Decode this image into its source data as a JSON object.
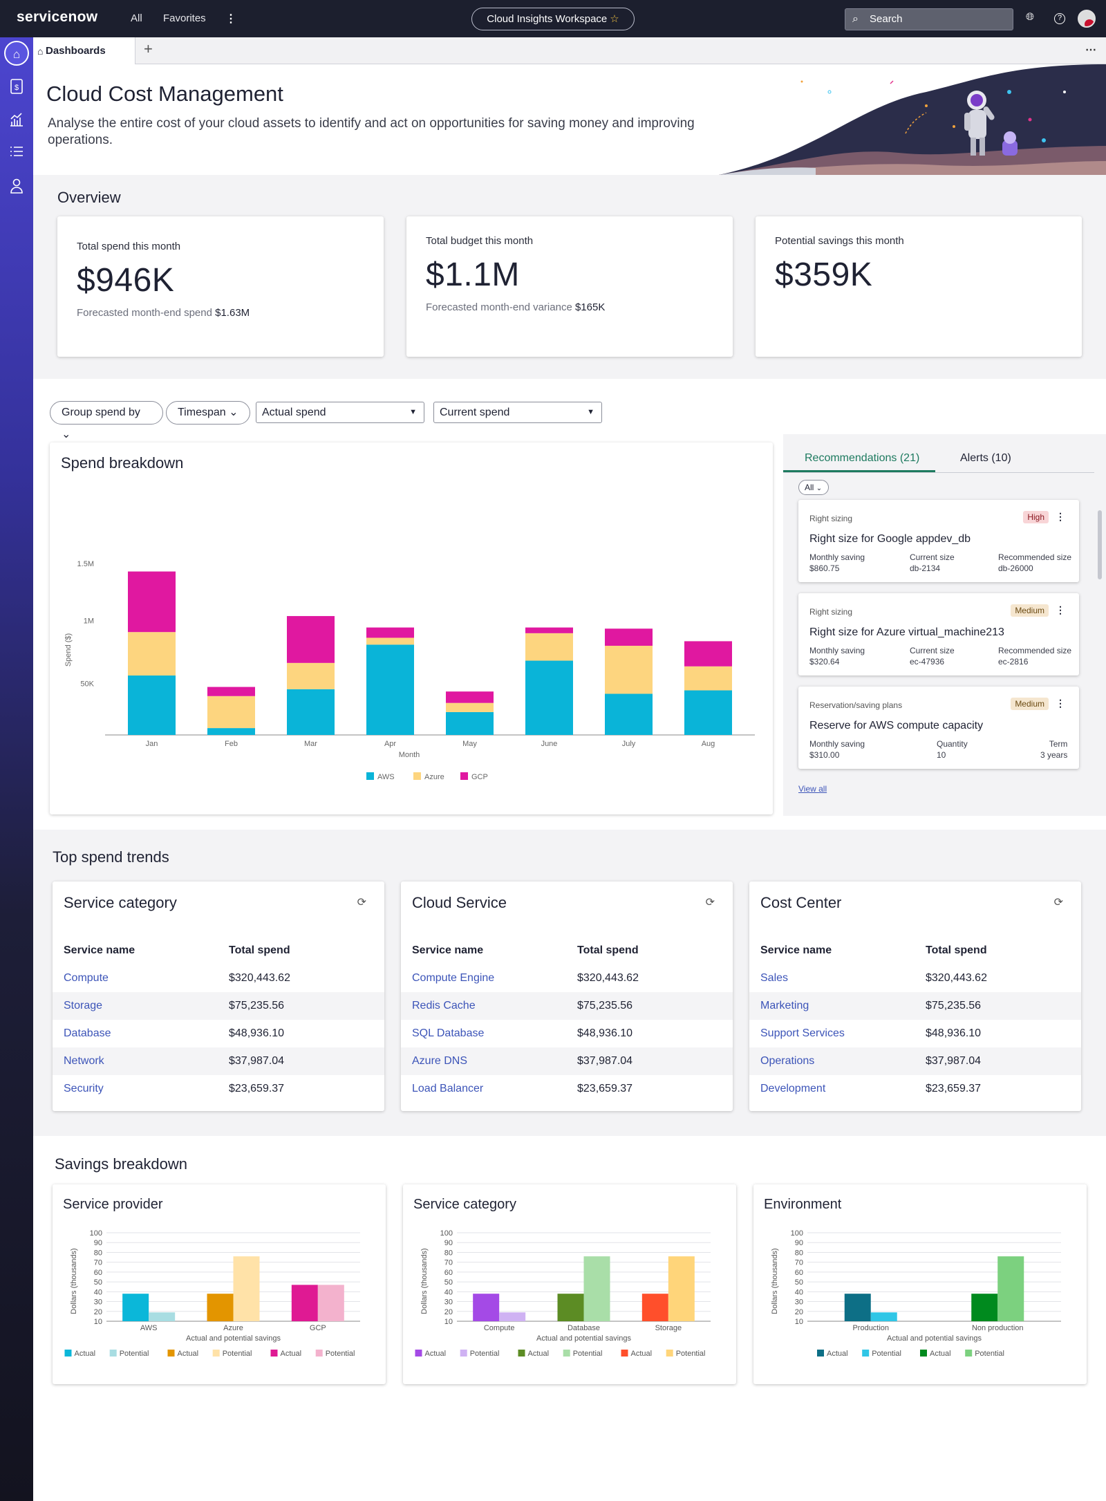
{
  "topbar": {
    "logo": "servicenow",
    "all": "All",
    "favorites": "Favorites",
    "workspace": "Cloud Insights Workspace",
    "search_placeholder": "Search"
  },
  "tabs": {
    "active": "Dashboards"
  },
  "hero": {
    "title": "Cloud Cost Management",
    "description": "Analyse the entire cost of your cloud assets to identify and act on opportunities for saving money and improving operations."
  },
  "overview": {
    "title": "Overview",
    "cards": [
      {
        "label": "Total spend this month",
        "value": "$946K",
        "sub_label": "Forecasted month-end spend",
        "sub_value": "$1.63M"
      },
      {
        "label": "Total budget this month",
        "value": "$1.1M",
        "sub_label": "Forecasted month-end variance",
        "sub_value": "$165K"
      },
      {
        "label": "Potential savings this month",
        "value": "$359K"
      }
    ]
  },
  "filters": {
    "group_by": "Group spend by",
    "timespan": "Timespan",
    "select1": "Actual spend",
    "select2": "Current spend"
  },
  "chart_data": [
    {
      "type": "bar",
      "stacked": true,
      "title": "Spend breakdown",
      "xlabel": "Month",
      "ylabel": "Spend ($)",
      "ytick_labels": [
        "50K",
        "1M",
        "1.5M"
      ],
      "categories": [
        "Jan",
        "Feb",
        "Mar",
        "Apr",
        "May",
        "June",
        "July",
        "Aug"
      ],
      "series": [
        {
          "name": "AWS",
          "color": "#0ab4d8",
          "values": [
            0.52,
            0.06,
            0.4,
            0.79,
            0.2,
            0.65,
            0.36,
            0.39
          ]
        },
        {
          "name": "Azure",
          "color": "#fdd57f",
          "values": [
            0.38,
            0.28,
            0.23,
            0.06,
            0.08,
            0.24,
            0.42,
            0.21
          ]
        },
        {
          "name": "GCP",
          "color": "#e018a0",
          "values": [
            0.53,
            0.08,
            0.41,
            0.09,
            0.1,
            0.05,
            0.15,
            0.22
          ]
        }
      ],
      "legend": "bottom"
    },
    {
      "type": "bar",
      "title": "Service provider",
      "xlabel": "Actual and potential savings",
      "ylabel": "Dollars (thousands)",
      "ylim": [
        10,
        100
      ],
      "categories": [
        "AWS",
        "Azure",
        "GCP"
      ],
      "bars": [
        {
          "actual": 38,
          "potential": 19,
          "colors": [
            "#0bb7d9",
            "#a8dde2"
          ]
        },
        {
          "actual": 38,
          "potential": 76,
          "colors": [
            "#e39500",
            "#ffe2a8"
          ]
        },
        {
          "actual": 47,
          "potential": 47,
          "colors": [
            "#df1a93",
            "#f3b2cd"
          ]
        }
      ],
      "legend": [
        {
          "label": "Actual",
          "color": "#0bb7d9"
        },
        {
          "label": "Potential",
          "color": "#a8dde2"
        },
        {
          "label": "Actual",
          "color": "#e39500"
        },
        {
          "label": "Potential",
          "color": "#ffe2a8"
        },
        {
          "label": "Actual",
          "color": "#df1a93"
        },
        {
          "label": "Potential",
          "color": "#f3b2cd"
        }
      ]
    },
    {
      "type": "bar",
      "title": "Service category",
      "xlabel": "Actual and potential savings",
      "ylabel": "Dollars (thousands)",
      "ylim": [
        10,
        100
      ],
      "categories": [
        "Compute",
        "Database",
        "Storage"
      ],
      "bars": [
        {
          "actual": 38,
          "potential": 19,
          "colors": [
            "#a44ae6",
            "#cfb2f3"
          ]
        },
        {
          "actual": 38,
          "potential": 76,
          "colors": [
            "#5c8c24",
            "#a9dea8"
          ]
        },
        {
          "actual": 38,
          "potential": 76,
          "colors": [
            "#ff4f2b",
            "#ffd57a"
          ]
        }
      ],
      "legend": [
        {
          "label": "Actual",
          "color": "#a44ae6"
        },
        {
          "label": "Potential",
          "color": "#cfb2f3"
        },
        {
          "label": "Actual",
          "color": "#5c8c24"
        },
        {
          "label": "Potential",
          "color": "#a9dea8"
        },
        {
          "label": "Actual",
          "color": "#ff4f2b"
        },
        {
          "label": "Potential",
          "color": "#ffd57a"
        }
      ]
    },
    {
      "type": "bar",
      "title": "Environment",
      "xlabel": "Actual and potential savings",
      "ylabel": "Dollars (thousands)",
      "ylim": [
        10,
        100
      ],
      "categories": [
        "Production",
        "Non production"
      ],
      "bars": [
        {
          "actual": 38,
          "potential": 19,
          "colors": [
            "#0d6f86",
            "#30c6e6"
          ]
        },
        {
          "actual": 38,
          "potential": 76,
          "colors": [
            "#008a1e",
            "#7cd17f"
          ]
        }
      ],
      "legend": [
        {
          "label": "Actual",
          "color": "#0d6f86"
        },
        {
          "label": "Potential",
          "color": "#30c6e6"
        },
        {
          "label": "Actual",
          "color": "#008a1e"
        },
        {
          "label": "Potential",
          "color": "#7cd17f"
        }
      ]
    }
  ],
  "recommendations": {
    "tab_recs": "Recommendations (21)",
    "tab_alerts": "Alerts (10)",
    "filter": "All",
    "view_all": "View all",
    "items": [
      {
        "category": "Right sizing",
        "badge": "High",
        "title": "Right size for Google appdev_db",
        "f1_label": "Monthly saving",
        "f1_value": "$860.75",
        "f2_label": "Current size",
        "f2_value": "db-2134",
        "f3_label": "Recommended size",
        "f3_value": "db-26000"
      },
      {
        "category": "Right sizing",
        "badge": "Medium",
        "title": "Right size for Azure virtual_machine213",
        "f1_label": "Monthly saving",
        "f1_value": "$320.64",
        "f2_label": "Current size",
        "f2_value": "ec-47936",
        "f3_label": "Recommended size",
        "f3_value": "ec-2816"
      },
      {
        "category": "Reservation/saving plans",
        "badge": "Medium",
        "title": "Reserve for AWS compute capacity",
        "f1_label": "Monthly saving",
        "f1_value": "$310.00",
        "f2_label": "Quantity",
        "f2_value": "10",
        "f3_label": "Term",
        "f3_value": "3 years"
      }
    ]
  },
  "trends": {
    "title": "Top spend trends",
    "col_name": "Service name",
    "col_spend": "Total spend",
    "tables": [
      {
        "title": "Service category",
        "rows": [
          [
            "Compute",
            "$320,443.62"
          ],
          [
            "Storage",
            "$75,235.56"
          ],
          [
            "Database",
            "$48,936.10"
          ],
          [
            "Network",
            "$37,987.04"
          ],
          [
            "Security",
            "$23,659.37"
          ]
        ]
      },
      {
        "title": "Cloud Service",
        "rows": [
          [
            "Compute Engine",
            "$320,443.62"
          ],
          [
            "Redis Cache",
            "$75,235.56"
          ],
          [
            "SQL Database",
            "$48,936.10"
          ],
          [
            "Azure DNS",
            "$37,987.04"
          ],
          [
            "Load Balancer",
            "$23,659.37"
          ]
        ]
      },
      {
        "title": "Cost Center",
        "rows": [
          [
            "Sales",
            "$320,443.62"
          ],
          [
            "Marketing",
            "$75,235.56"
          ],
          [
            "Support Services",
            "$48,936.10"
          ],
          [
            "Operations",
            "$37,987.04"
          ],
          [
            "Development",
            "$23,659.37"
          ]
        ]
      }
    ]
  },
  "savings": {
    "title": "Savings breakdown"
  }
}
